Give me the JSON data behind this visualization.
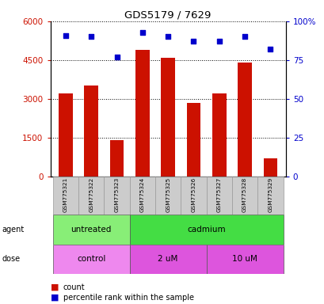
{
  "title": "GDS5179 / 7629",
  "samples": [
    "GSM775321",
    "GSM775322",
    "GSM775323",
    "GSM775324",
    "GSM775325",
    "GSM775326",
    "GSM775327",
    "GSM775328",
    "GSM775329"
  ],
  "counts": [
    3200,
    3500,
    1400,
    4900,
    4600,
    2850,
    3200,
    4400,
    700
  ],
  "percentiles": [
    91,
    90,
    77,
    93,
    90,
    87,
    87,
    90,
    82
  ],
  "ylim_left": [
    0,
    6000
  ],
  "ylim_right": [
    0,
    100
  ],
  "yticks_left": [
    0,
    1500,
    3000,
    4500,
    6000
  ],
  "yticks_right": [
    0,
    25,
    50,
    75,
    100
  ],
  "yticklabels_left": [
    "0",
    "1500",
    "3000",
    "4500",
    "6000"
  ],
  "yticklabels_right": [
    "0",
    "25",
    "50",
    "75",
    "100%"
  ],
  "bar_color": "#cc1100",
  "dot_color": "#0000cc",
  "agent_configs": [
    {
      "text": "untreated",
      "start": 0,
      "end": 2,
      "color": "#88ee77"
    },
    {
      "text": "cadmium",
      "start": 3,
      "end": 8,
      "color": "#44dd44"
    }
  ],
  "dose_configs": [
    {
      "text": "control",
      "start": 0,
      "end": 2,
      "color": "#ee88ee"
    },
    {
      "text": "2 uM",
      "start": 3,
      "end": 5,
      "color": "#dd55dd"
    },
    {
      "text": "10 uM",
      "start": 6,
      "end": 8,
      "color": "#dd55dd"
    }
  ],
  "tick_color_left": "#cc1100",
  "tick_color_right": "#0000cc",
  "sample_bg": "#cccccc",
  "legend_count_color": "#cc1100",
  "legend_dot_color": "#0000cc"
}
